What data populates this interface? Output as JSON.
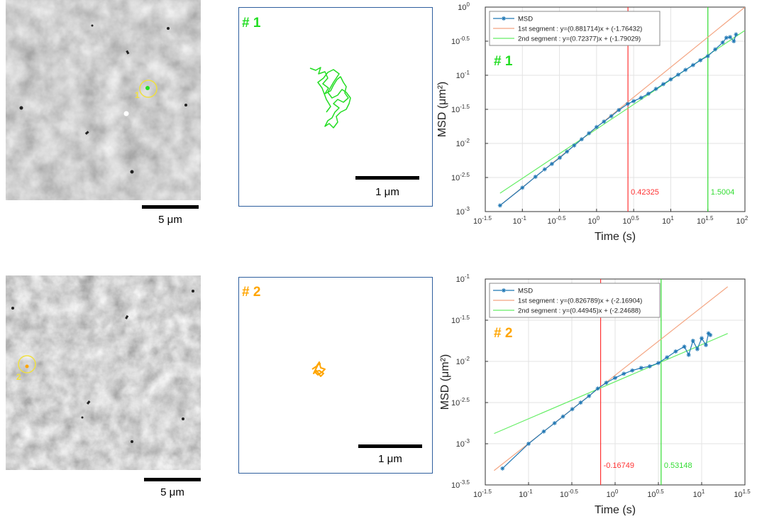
{
  "images": [
    {
      "marker_label": "1",
      "scale_bar_label": "5 μm"
    },
    {
      "marker_label": "2",
      "scale_bar_label": "5 μm"
    }
  ],
  "tracks": [
    {
      "label": "# 1",
      "color": "#22dd22",
      "scale_bar_label": "1 μm"
    },
    {
      "label": "# 2",
      "color": "#ffa500",
      "scale_bar_label": "1 μm"
    }
  ],
  "chart_data": [
    {
      "type": "line",
      "annotation": "# 1",
      "annotation_color": "#22dd22",
      "xlabel": "Time (s)",
      "ylabel": "MSD (μm²)",
      "x_log": true,
      "y_log": true,
      "grid": true,
      "legend": "upper-left",
      "xlim": [
        0.0316228,
        100
      ],
      "ylim": [
        0.001,
        1
      ],
      "xticks": [
        {
          "value": 0.0316228,
          "label": "10^-1.5"
        },
        {
          "value": 0.1,
          "label": "10^-1"
        },
        {
          "value": 0.316228,
          "label": "10^-0.5"
        },
        {
          "value": 1,
          "label": "10^0"
        },
        {
          "value": 3.16228,
          "label": "10^0.5"
        },
        {
          "value": 10,
          "label": "10^1"
        },
        {
          "value": 31.6228,
          "label": "10^1.5"
        },
        {
          "value": 100,
          "label": "10^2"
        }
      ],
      "yticks": [
        {
          "value": 0.001,
          "label": "10^-3"
        },
        {
          "value": 0.00316228,
          "label": "10^-2.5"
        },
        {
          "value": 0.01,
          "label": "10^-2"
        },
        {
          "value": 0.0316228,
          "label": "10^-1.5"
        },
        {
          "value": 0.1,
          "label": "10^-1"
        },
        {
          "value": 0.316228,
          "label": "10^-0.5"
        },
        {
          "value": 1,
          "label": "10^0"
        }
      ],
      "series": [
        {
          "name": "MSD",
          "color": "#1f77b4",
          "marker": "star",
          "x": [
            0.05,
            0.1,
            0.15,
            0.2,
            0.25,
            0.32,
            0.4,
            0.5,
            0.63,
            0.79,
            1,
            1.26,
            1.58,
            2,
            2.63,
            3.16,
            3.98,
            5.01,
            6.31,
            7.94,
            10,
            12.6,
            15.8,
            20,
            25.1,
            31.6,
            39.8,
            50.1,
            56.2,
            63.1,
            70.8,
            75.9
          ],
          "values": [
            0.00123,
            0.00224,
            0.00324,
            0.00417,
            0.00501,
            0.00617,
            0.00759,
            0.00933,
            0.0115,
            0.0141,
            0.0174,
            0.0209,
            0.0251,
            0.0309,
            0.038,
            0.0417,
            0.0468,
            0.0537,
            0.0631,
            0.0741,
            0.0871,
            0.102,
            0.12,
            0.141,
            0.166,
            0.191,
            0.24,
            0.302,
            0.355,
            0.363,
            0.316,
            0.398
          ]
        },
        {
          "name": "1st segment : y=(0.881714)x + (-1.76432)",
          "color": "#f4a582",
          "x": [
            0.05,
            100
          ],
          "values": [
            0.00123,
            0.9986
          ]
        },
        {
          "name": "2nd segment : y=(0.72377)x + (-1.79029)",
          "color": "#66ee66",
          "x": [
            0.05,
            100
          ],
          "values": [
            0.00186,
            0.454
          ]
        }
      ],
      "vlines": [
        {
          "x": 2.6505,
          "label": "0.42325",
          "color": "#ff3333"
        },
        {
          "x": 31.65,
          "label": "1.5004",
          "color": "#33dd33"
        }
      ]
    },
    {
      "type": "line",
      "annotation": "# 2",
      "annotation_color": "#ffa500",
      "xlabel": "Time (s)",
      "ylabel": "MSD (μm²)",
      "x_log": true,
      "y_log": true,
      "grid": true,
      "legend": "upper-left",
      "xlim": [
        0.0316228,
        31.6228
      ],
      "ylim": [
        0.000316228,
        0.1
      ],
      "xticks": [
        {
          "value": 0.0316228,
          "label": "10^-1.5"
        },
        {
          "value": 0.1,
          "label": "10^-1"
        },
        {
          "value": 0.316228,
          "label": "10^-0.5"
        },
        {
          "value": 1,
          "label": "10^0"
        },
        {
          "value": 3.16228,
          "label": "10^0.5"
        },
        {
          "value": 10,
          "label": "10^1"
        },
        {
          "value": 31.6228,
          "label": "10^1.5"
        }
      ],
      "yticks": [
        {
          "value": 0.000316228,
          "label": "10^-3.5"
        },
        {
          "value": 0.001,
          "label": "10^-3"
        },
        {
          "value": 0.00316228,
          "label": "10^-2.5"
        },
        {
          "value": 0.01,
          "label": "10^-2"
        },
        {
          "value": 0.0316228,
          "label": "10^-1.5"
        },
        {
          "value": 0.1,
          "label": "10^-1"
        }
      ],
      "series": [
        {
          "name": "MSD",
          "color": "#1f77b4",
          "marker": "star",
          "x": [
            0.05,
            0.1,
            0.15,
            0.2,
            0.25,
            0.32,
            0.4,
            0.5,
            0.63,
            0.79,
            1,
            1.26,
            1.58,
            2,
            2.51,
            3.16,
            3.98,
            5.01,
            6.31,
            7.08,
            7.94,
            8.91,
            10,
            11.2,
            12,
            12.6
          ],
          "values": [
            0.000501,
            0.001,
            0.00141,
            0.00178,
            0.00214,
            0.00263,
            0.00316,
            0.0038,
            0.00468,
            0.0055,
            0.0063,
            0.00708,
            0.00776,
            0.00832,
            0.00871,
            0.00955,
            0.0112,
            0.0132,
            0.0151,
            0.012,
            0.0178,
            0.0141,
            0.0191,
            0.0158,
            0.0219,
            0.0209
          ]
        },
        {
          "name": "1st segment : y=(0.826789)x + (-2.16904)",
          "color": "#f4a582",
          "x": [
            0.04,
            20
          ],
          "values": [
            0.000473,
            0.0807
          ]
        },
        {
          "name": "2nd segment : y=(0.44945)x + (-2.24688)",
          "color": "#66ee66",
          "x": [
            0.04,
            20
          ],
          "values": [
            0.00133,
            0.0218
          ]
        }
      ],
      "vlines": [
        {
          "x": 0.68,
          "label": "-0.16749",
          "color": "#ff3333"
        },
        {
          "x": 3.4,
          "label": "0.53148",
          "color": "#33dd33"
        }
      ]
    }
  ]
}
